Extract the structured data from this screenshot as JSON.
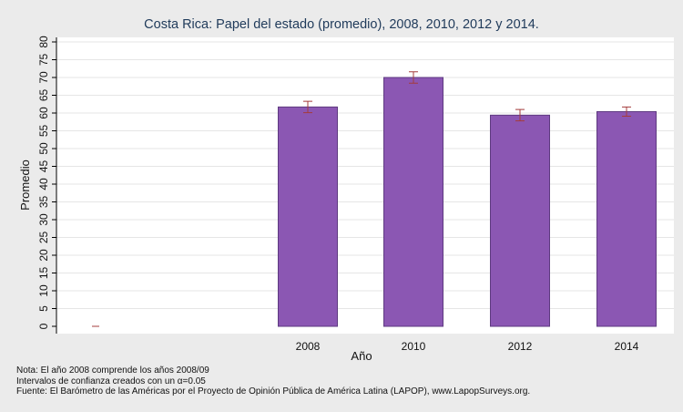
{
  "chart_data": {
    "type": "bar",
    "title": "Costa Rica: Papel del estado (promedio), 2008, 2010, 2012 y 2014.",
    "xlabel": "Año",
    "ylabel": "Promedio",
    "ylim": [
      0,
      80
    ],
    "yticks": [
      "0",
      "5",
      "10",
      "15",
      "20",
      "25",
      "30",
      "35",
      "40",
      "45",
      "50",
      "55",
      "60",
      "65",
      "70",
      "75",
      "80"
    ],
    "grid": true,
    "colors": {
      "bar": "#8b57b3",
      "bar_edge": "#5e3a80",
      "error": "#a43c3c",
      "grid": "#e6e6e6",
      "plot_bg": "#ffffff"
    },
    "categories": [
      "",
      "2008",
      "2010",
      "2012",
      "2014"
    ],
    "values": [
      0,
      61.7,
      70.0,
      59.4,
      60.4
    ],
    "ci_low": [
      0,
      60.1,
      68.4,
      57.8,
      59.1
    ],
    "ci_high": [
      0,
      63.3,
      71.6,
      61.0,
      61.7
    ]
  },
  "notes": {
    "line1": "Nota: El año 2008 comprende los años 2008/09",
    "line2": "Intervalos de confianza creados con un α=0.05",
    "line3": "Fuente: El Barómetro de las Américas por el Proyecto de Opinión Pública de América Latina (LAPOP), www.LapopSurveys.org."
  }
}
